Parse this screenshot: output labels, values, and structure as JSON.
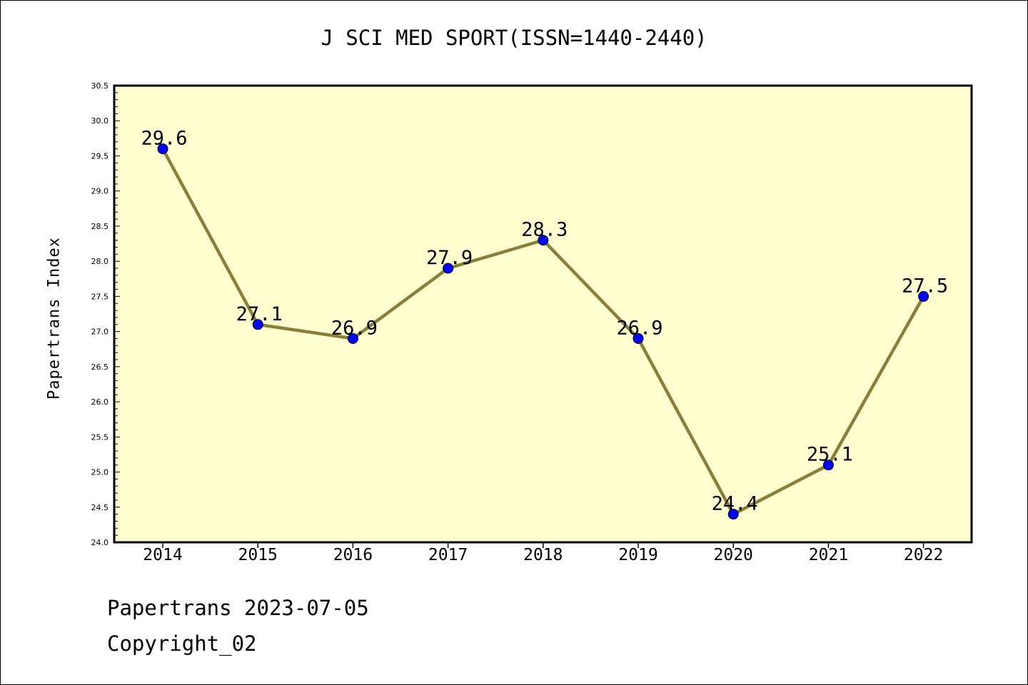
{
  "title": "J SCI MED SPORT(ISSN=1440-2440)",
  "footer": {
    "line1": "Papertrans 2023-07-05",
    "line2": "Copyright_02"
  },
  "chart_data": {
    "type": "line",
    "title": "J SCI MED SPORT(ISSN=1440-2440)",
    "xlabel": "",
    "ylabel": "Papertrans Index",
    "categories": [
      "2014",
      "2015",
      "2016",
      "2017",
      "2018",
      "2019",
      "2020",
      "2021",
      "2022"
    ],
    "series": [
      {
        "values": [
          29.6,
          27.1,
          26.9,
          27.9,
          28.3,
          26.9,
          24.4,
          25.1,
          27.5
        ],
        "data_labels": [
          "29.6",
          "27.1",
          "26.9",
          "27.9",
          "28.3",
          "26.9",
          "24.4",
          "25.1",
          "27.5"
        ]
      }
    ],
    "ylim": [
      24.0,
      30.5
    ],
    "yticks": [
      "24.0",
      "24.5",
      "25.0",
      "25.5",
      "26.0",
      "26.5",
      "27.0",
      "27.5",
      "28.0",
      "28.5",
      "29.0",
      "29.5",
      "30.0",
      "30.5"
    ],
    "grid": false,
    "legend": "none",
    "colors": {
      "plot_background": "#ffffd0",
      "line": "#8b7d3a",
      "marker": "#0000ff",
      "axes": "#000000"
    }
  }
}
